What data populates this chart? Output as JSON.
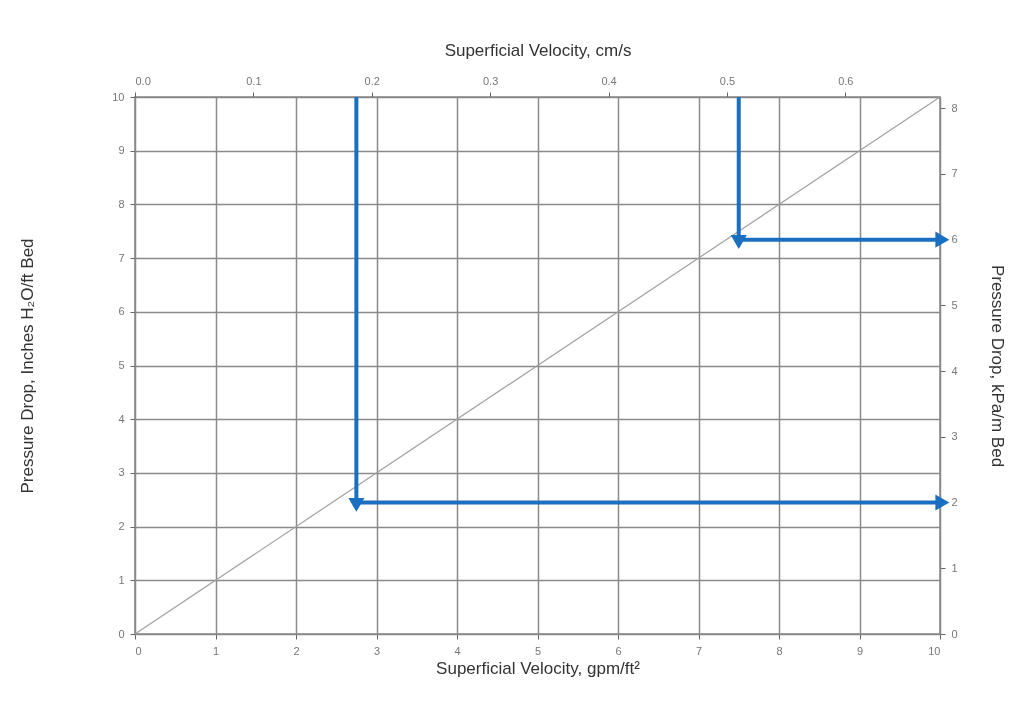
{
  "chart_data": {
    "type": "line",
    "xlabel": "Superficial Velocity, gpm/ft²",
    "x2label": "Superficial Velocity, cm/s",
    "ylabel": "Pressure Drop, Inches H₂O/ft Bed",
    "y2label": "Pressure Drop, kPa/m Bed",
    "xlim": [
      0,
      10
    ],
    "xticks": [
      0,
      1,
      2,
      3,
      4,
      5,
      6,
      7,
      8,
      9,
      10
    ],
    "x2lim": [
      0,
      0.68
    ],
    "x2ticks": [
      {
        "value": 0,
        "label": "0.0"
      },
      0.1,
      0.2,
      0.3,
      0.4,
      0.5,
      0.6
    ],
    "ylim": [
      0,
      10
    ],
    "yticks": [
      0,
      1,
      2,
      3,
      4,
      5,
      6,
      7,
      8,
      9,
      10
    ],
    "y2lim": [
      0,
      8.17
    ],
    "y2ticks": [
      0,
      1,
      2,
      3,
      4,
      5,
      6,
      7,
      8
    ],
    "grid": true,
    "series": [
      {
        "color": "#a0a0a0",
        "x": [
          0,
          10
        ],
        "values": [
          0,
          10
        ]
      },
      {
        "color": "#1a6fc0",
        "axis": "y2",
        "x": [
          2.75,
          2.75,
          10
        ],
        "values": [
          8.17,
          2,
          2
        ]
      },
      {
        "color": "#1a6fc0",
        "axis": "y2",
        "x": [
          7.5,
          7.5,
          10
        ],
        "values": [
          8.17,
          6,
          6
        ]
      }
    ]
  }
}
